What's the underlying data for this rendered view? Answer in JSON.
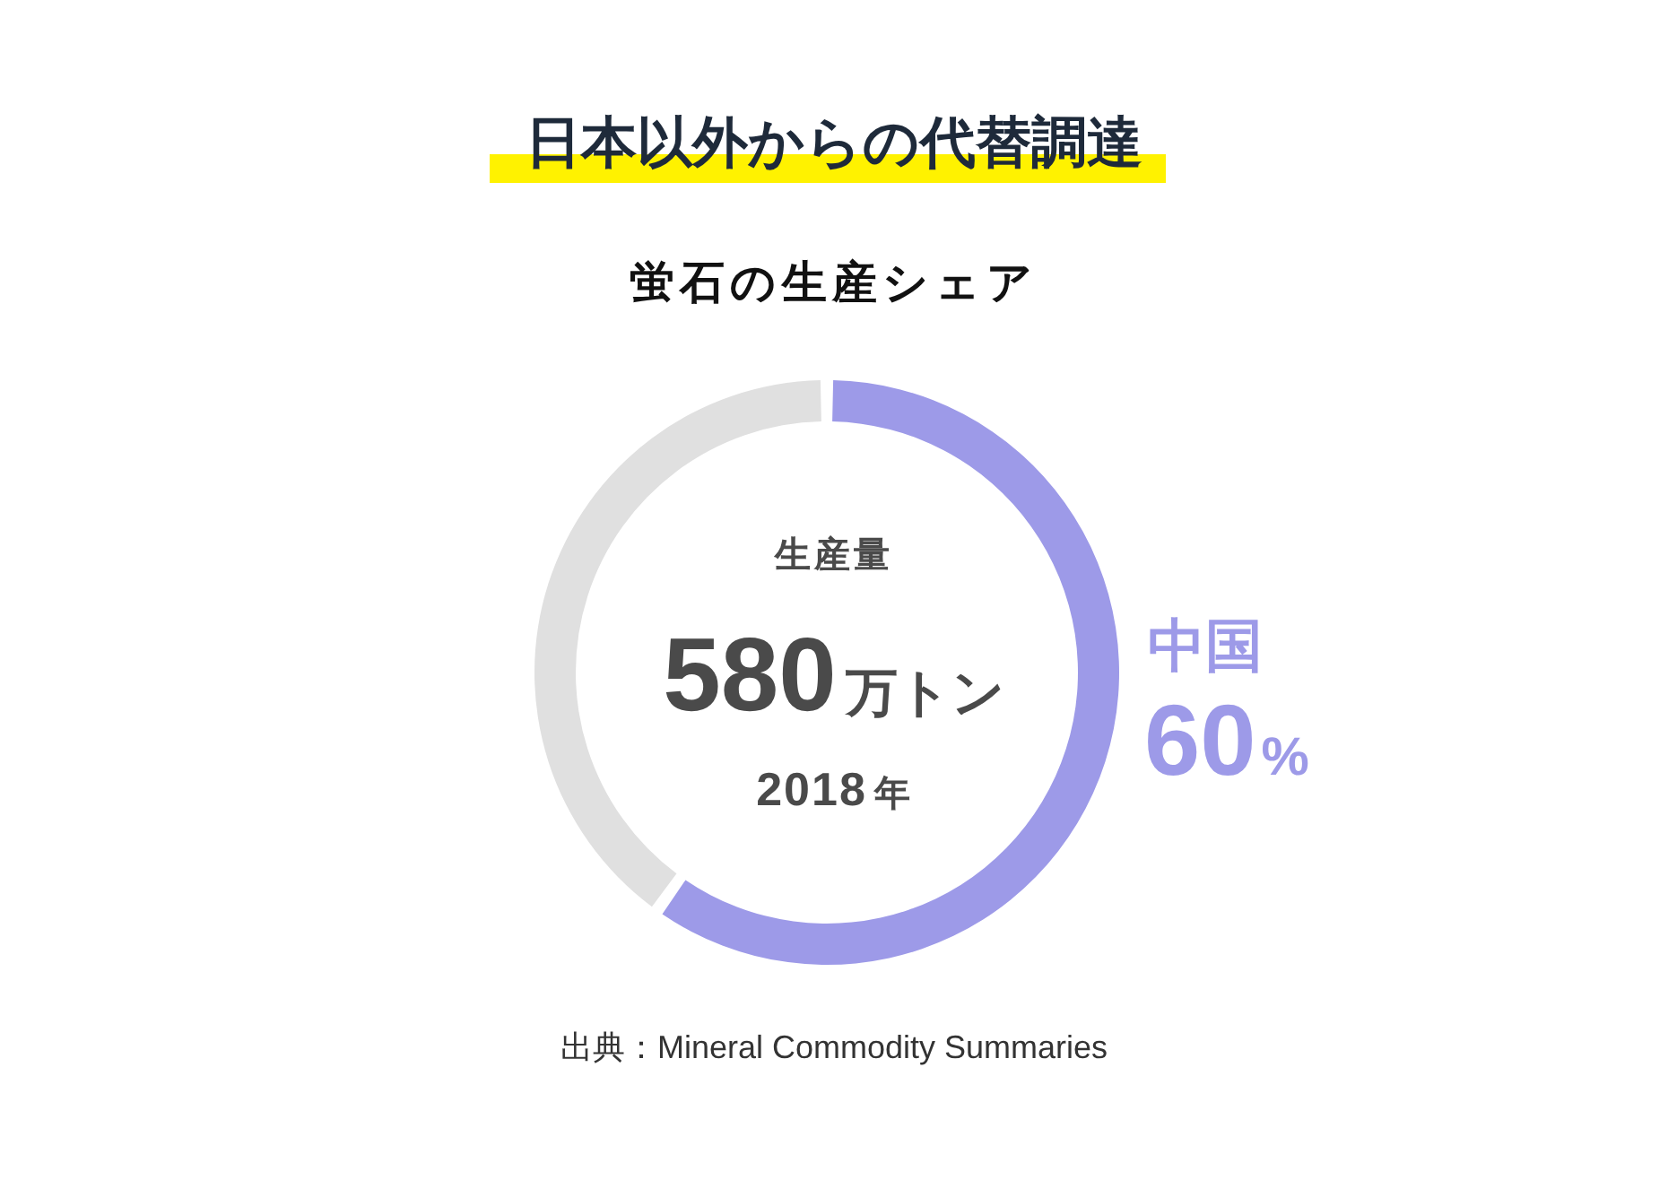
{
  "chart_data": {
    "type": "donut",
    "title": "日本以外からの代替調達",
    "subtitle": "蛍石の生産シェア",
    "categories": [
      "中国",
      null
    ],
    "values": [
      60,
      40
    ],
    "colors": [
      "#9d9ae8",
      "#e0e0e0"
    ],
    "value_labels": [
      "60%",
      null
    ],
    "annotations": [
      "生産量",
      "580万トン",
      "2018年",
      "出典：Mineral Commodity Summaries"
    ]
  }
}
